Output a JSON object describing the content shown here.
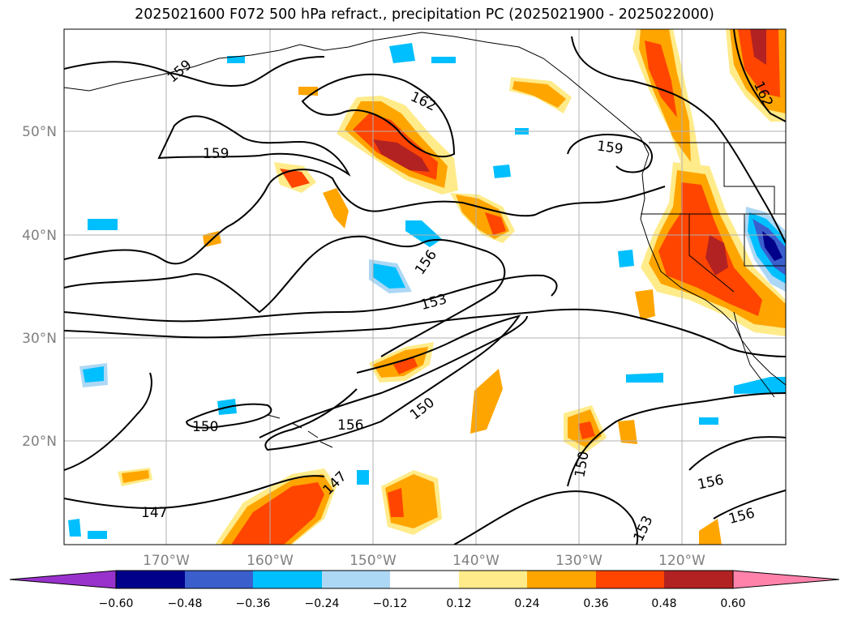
{
  "title": "2025021600 F072 500 hPa refract., precipitation PC (2025021900 - 2025022000)",
  "map": {
    "lon_ticks": [
      "170°W",
      "160°W",
      "150°W",
      "140°W",
      "130°W",
      "120°W"
    ],
    "lat_ticks": [
      "50°N",
      "40°N",
      "30°N",
      "20°N"
    ],
    "contour_labels": [
      "159",
      "159",
      "162",
      "159",
      "162",
      "156",
      "153",
      "150",
      "150",
      "156",
      "147",
      "147",
      "150",
      "153",
      "156",
      "156"
    ],
    "colors": {
      "pos1": "#ffeb8a",
      "pos2": "#ffa500",
      "pos3": "#ff4500",
      "pos4": "#b22222",
      "neg1": "#add8f5",
      "neg2": "#00bfff",
      "neg3": "#3a5fcd",
      "neg4": "#00008b",
      "grid": "#b0b0b0",
      "contour": "#000000"
    }
  },
  "colorbar": {
    "labels": [
      "-0.60",
      "-0.48",
      "-0.36",
      "-0.24",
      "-0.12",
      "0.12",
      "0.24",
      "0.36",
      "0.48",
      "0.60"
    ],
    "colors": [
      "#9932cc",
      "#00008b",
      "#3a5fcd",
      "#00bfff",
      "#add8f5",
      "#ffffff",
      "#ffeb8a",
      "#ffa500",
      "#ff4500",
      "#b22222",
      "#ff82ab"
    ]
  }
}
